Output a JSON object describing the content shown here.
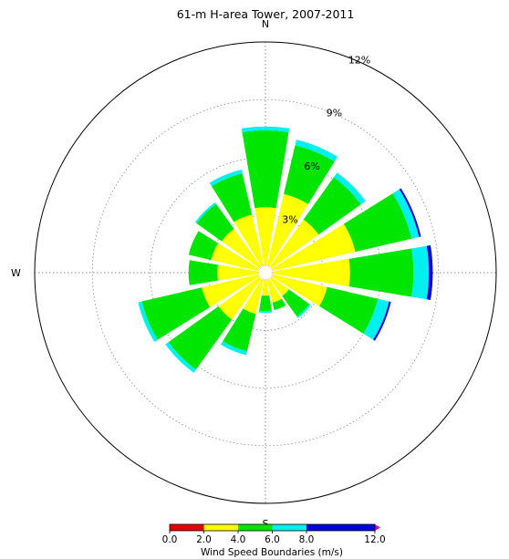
{
  "chart_data": {
    "type": "windrose",
    "title": "61-m H-area Tower, 2007-2011",
    "direction_labels": {
      "n": "N",
      "s": "S",
      "w": "W"
    },
    "radial_ticks": [
      {
        "value": 3,
        "label": "3%"
      },
      {
        "value": 6,
        "label": "6%"
      },
      {
        "value": 9,
        "label": "9%"
      },
      {
        "value": 12,
        "label": "12%"
      }
    ],
    "rmax": 12,
    "grid": true,
    "sectors": 16,
    "speed_bins": [
      {
        "range": "0.0-2.0",
        "color": "#e80000"
      },
      {
        "range": "2.0-4.0",
        "color": "#ffff00"
      },
      {
        "range": "4.0-6.0",
        "color": "#00e600"
      },
      {
        "range": "6.0-8.0",
        "color": "#00f0f0"
      },
      {
        "range": "8.0-12.0",
        "color": "#0000dd"
      },
      {
        "range": ">12.0",
        "color": "#cc00cc"
      }
    ],
    "direction_values_cumulative_percent": [
      {
        "direction": "N",
        "cum": [
          0.4,
          3.4,
          7.4,
          7.6,
          7.6
        ]
      },
      {
        "direction": "NNE",
        "cum": [
          0.4,
          4.2,
          6.8,
          7.1,
          7.1
        ]
      },
      {
        "direction": "NE",
        "cum": [
          0.4,
          3.4,
          6.1,
          6.4,
          6.4
        ]
      },
      {
        "direction": "ENE",
        "cum": [
          0.4,
          4.8,
          7.8,
          8.2,
          8.3
        ]
      },
      {
        "direction": "E",
        "cum": [
          0.4,
          4.4,
          7.7,
          8.5,
          8.7
        ]
      },
      {
        "direction": "ESE",
        "cum": [
          0.4,
          3.3,
          6.0,
          6.6,
          6.7
        ]
      },
      {
        "direction": "SE",
        "cum": [
          0.4,
          1.5,
          2.8,
          2.9,
          2.9
        ]
      },
      {
        "direction": "SSE",
        "cum": [
          0.4,
          1.6,
          2.0,
          2.0,
          2.0
        ]
      },
      {
        "direction": "S",
        "cum": [
          0.4,
          1.2,
          2.0,
          2.1,
          2.1
        ]
      },
      {
        "direction": "SSW",
        "cum": [
          0.4,
          2.2,
          4.2,
          4.4,
          4.4
        ]
      },
      {
        "direction": "SW",
        "cum": [
          0.4,
          3.0,
          6.2,
          6.4,
          6.4
        ]
      },
      {
        "direction": "WSW",
        "cum": [
          0.4,
          3.4,
          6.6,
          6.8,
          6.8
        ]
      },
      {
        "direction": "W",
        "cum": [
          0.4,
          2.5,
          4.0,
          4.0,
          4.0
        ]
      },
      {
        "direction": "WNW",
        "cum": [
          0.4,
          2.9,
          4.1,
          4.1,
          4.1
        ]
      },
      {
        "direction": "NW",
        "cum": [
          0.4,
          2.8,
          4.4,
          4.5,
          4.5
        ]
      },
      {
        "direction": "NNW",
        "cum": [
          0.4,
          3.1,
          5.3,
          5.5,
          5.5
        ]
      }
    ],
    "colorbar": {
      "ticks": [
        "0.0",
        "2.0",
        "4.0",
        "6.0",
        "8.0",
        "12.0"
      ],
      "label": "Wind Speed Boundaries (m/s)"
    }
  }
}
